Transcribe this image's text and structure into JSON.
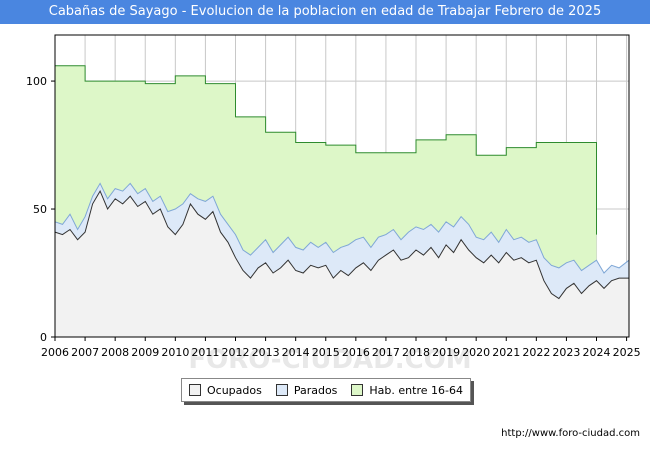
{
  "title": "Cabañas de Sayago - Evolucion de la poblacion en edad de Trabajar Febrero de 2025",
  "source": "http://www.foro-ciudad.com",
  "watermark": "FORO-CIUDAD.COM",
  "colors": {
    "title_bg": "#4a86e0",
    "ocupados_fill": "#f2f2f2",
    "ocupados_line": "#333333",
    "parados_fill": "#dde9f8",
    "parados_line": "#7fa7d6",
    "hab_fill": "#ddf7c8",
    "hab_line": "#2e8b2e"
  },
  "legend": {
    "ocupados": "Ocupados",
    "parados": "Parados",
    "hab": "Hab. entre 16-64"
  },
  "chart_data": {
    "type": "area",
    "title": "Cabañas de Sayago - Evolucion de la poblacion en edad de Trabajar Febrero de 2025",
    "xlabel": "",
    "ylabel": "",
    "x_ticks": [
      "2006",
      "2007",
      "2008",
      "2009",
      "2010",
      "2011",
      "2012",
      "2013",
      "2014",
      "2015",
      "2016",
      "2017",
      "2018",
      "2019",
      "2020",
      "2021",
      "2022",
      "2023",
      "2024",
      "2025"
    ],
    "y_ticks": [
      0,
      50,
      100
    ],
    "xlim": [
      2006,
      2025.08
    ],
    "ylim": [
      0,
      118
    ],
    "grid": true,
    "legend_position": "bottom",
    "series": [
      {
        "name": "Hab. entre 16-64",
        "steps": [
          {
            "from": 2006,
            "to": 2007,
            "value": 106
          },
          {
            "from": 2007,
            "to": 2009,
            "value": 100
          },
          {
            "from": 2009,
            "to": 2010,
            "value": 99
          },
          {
            "from": 2010,
            "to": 2011,
            "value": 102
          },
          {
            "from": 2011,
            "to": 2012,
            "value": 99
          },
          {
            "from": 2012,
            "to": 2013,
            "value": 86
          },
          {
            "from": 2013,
            "to": 2014,
            "value": 80
          },
          {
            "from": 2014,
            "to": 2015,
            "value": 76
          },
          {
            "from": 2015,
            "to": 2016,
            "value": 75
          },
          {
            "from": 2016,
            "to": 2018,
            "value": 72
          },
          {
            "from": 2018,
            "to": 2019,
            "value": 77
          },
          {
            "from": 2019,
            "to": 2020,
            "value": 79
          },
          {
            "from": 2020,
            "to": 2021,
            "value": 71
          },
          {
            "from": 2021,
            "to": 2022,
            "value": 74
          },
          {
            "from": 2022,
            "to": 2024,
            "value": 76
          },
          {
            "from": 2024,
            "to": 2024,
            "value": 75
          }
        ]
      },
      {
        "name": "Parados",
        "x": [
          2006,
          2006.25,
          2006.5,
          2006.75,
          2007,
          2007.25,
          2007.5,
          2007.75,
          2008,
          2008.25,
          2008.5,
          2008.75,
          2009,
          2009.25,
          2009.5,
          2009.75,
          2010,
          2010.25,
          2010.5,
          2010.75,
          2011,
          2011.25,
          2011.5,
          2011.75,
          2012,
          2012.25,
          2012.5,
          2012.75,
          2013,
          2013.25,
          2013.5,
          2013.75,
          2014,
          2014.25,
          2014.5,
          2014.75,
          2015,
          2015.25,
          2015.5,
          2015.75,
          2016,
          2016.25,
          2016.5,
          2016.75,
          2017,
          2017.25,
          2017.5,
          2017.75,
          2018,
          2018.25,
          2018.5,
          2018.75,
          2019,
          2019.25,
          2019.5,
          2019.75,
          2020,
          2020.25,
          2020.5,
          2020.75,
          2021,
          2021.25,
          2021.5,
          2021.75,
          2022,
          2022.25,
          2022.5,
          2022.75,
          2023,
          2023.25,
          2023.5,
          2023.75,
          2024,
          2024.25,
          2024.5,
          2024.75,
          2025.08
        ],
        "values": [
          45,
          44,
          48,
          42,
          47,
          55,
          60,
          54,
          58,
          57,
          60,
          56,
          58,
          53,
          55,
          49,
          50,
          52,
          56,
          54,
          53,
          55,
          48,
          44,
          40,
          34,
          32,
          35,
          38,
          33,
          36,
          39,
          35,
          34,
          37,
          35,
          37,
          33,
          35,
          36,
          38,
          39,
          35,
          39,
          40,
          42,
          38,
          41,
          43,
          42,
          44,
          41,
          45,
          43,
          47,
          44,
          39,
          38,
          41,
          37,
          42,
          38,
          39,
          37,
          38,
          31,
          28,
          27,
          29,
          30,
          26,
          28,
          30,
          25,
          28,
          27,
          30
        ]
      },
      {
        "name": "Ocupados",
        "x": [
          2006,
          2006.25,
          2006.5,
          2006.75,
          2007,
          2007.25,
          2007.5,
          2007.75,
          2008,
          2008.25,
          2008.5,
          2008.75,
          2009,
          2009.25,
          2009.5,
          2009.75,
          2010,
          2010.25,
          2010.5,
          2010.75,
          2011,
          2011.25,
          2011.5,
          2011.75,
          2012,
          2012.25,
          2012.5,
          2012.75,
          2013,
          2013.25,
          2013.5,
          2013.75,
          2014,
          2014.25,
          2014.5,
          2014.75,
          2015,
          2015.25,
          2015.5,
          2015.75,
          2016,
          2016.25,
          2016.5,
          2016.75,
          2017,
          2017.25,
          2017.5,
          2017.75,
          2018,
          2018.25,
          2018.5,
          2018.75,
          2019,
          2019.25,
          2019.5,
          2019.75,
          2020,
          2020.25,
          2020.5,
          2020.75,
          2021,
          2021.25,
          2021.5,
          2021.75,
          2022,
          2022.25,
          2022.5,
          2022.75,
          2023,
          2023.25,
          2023.5,
          2023.75,
          2024,
          2024.25,
          2024.5,
          2024.75,
          2025.08
        ],
        "values": [
          41,
          40,
          42,
          38,
          41,
          52,
          57,
          50,
          54,
          52,
          55,
          51,
          53,
          48,
          50,
          43,
          40,
          44,
          52,
          48,
          46,
          49,
          41,
          37,
          31,
          26,
          23,
          27,
          29,
          25,
          27,
          30,
          26,
          25,
          28,
          27,
          28,
          23,
          26,
          24,
          27,
          29,
          26,
          30,
          32,
          34,
          30,
          31,
          34,
          32,
          35,
          31,
          36,
          33,
          38,
          34,
          31,
          29,
          32,
          29,
          33,
          30,
          31,
          29,
          30,
          22,
          17,
          15,
          19,
          21,
          17,
          20,
          22,
          19,
          22,
          23,
          23
        ]
      }
    ]
  }
}
